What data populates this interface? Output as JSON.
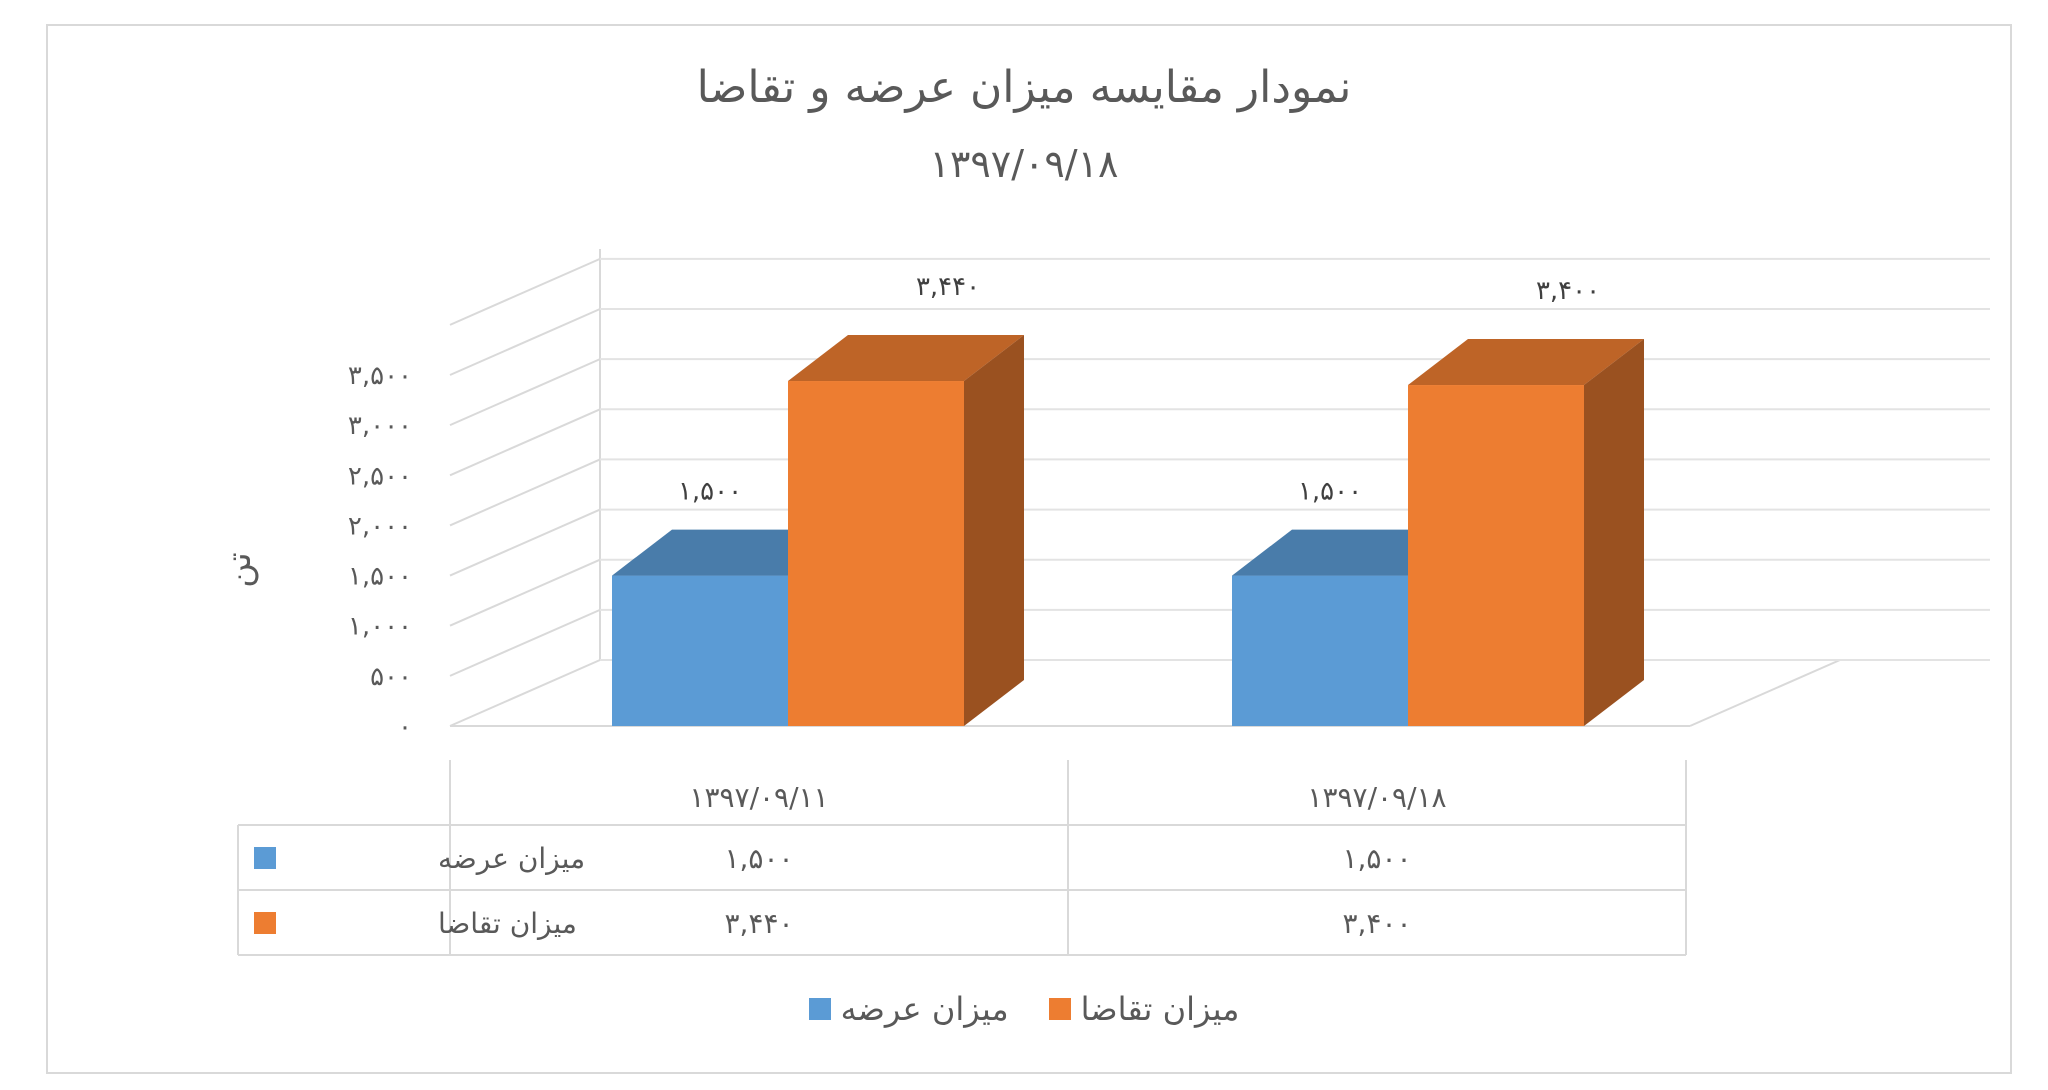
{
  "chart_data": {
    "type": "bar",
    "title": "نمودار مقایسه میزان عرضه و تقاضا",
    "subtitle": "۱۳۹۷/۰۹/۱۸",
    "ylabel": "تن",
    "categories": [
      "۱۳۹۷/۰۹/۱۱",
      "۱۳۹۷/۰۹/۱۸"
    ],
    "series": [
      {
        "name": "میزان عرضه",
        "values": [
          1500,
          1500
        ],
        "labels": [
          "۱,۵۰۰",
          "۱,۵۰۰"
        ],
        "color": "#5b9bd5"
      },
      {
        "name": "میزان تقاضا",
        "values": [
          3440,
          3400
        ],
        "labels": [
          "۳,۴۴۰",
          "۳,۴۰۰"
        ],
        "color": "#ed7d31"
      }
    ],
    "ylim": [
      0,
      3500
    ],
    "yticks": [
      0,
      500,
      1000,
      1500,
      2000,
      2500,
      3000,
      3500
    ],
    "yticklabels": [
      "۰",
      "۵۰۰",
      "۱,۰۰۰",
      "۱,۵۰۰",
      "۲,۰۰۰",
      "۲,۵۰۰",
      "۳,۰۰۰",
      "۳,۵۰۰"
    ],
    "grid": true,
    "data_table": true,
    "legend_position": "bottom"
  }
}
